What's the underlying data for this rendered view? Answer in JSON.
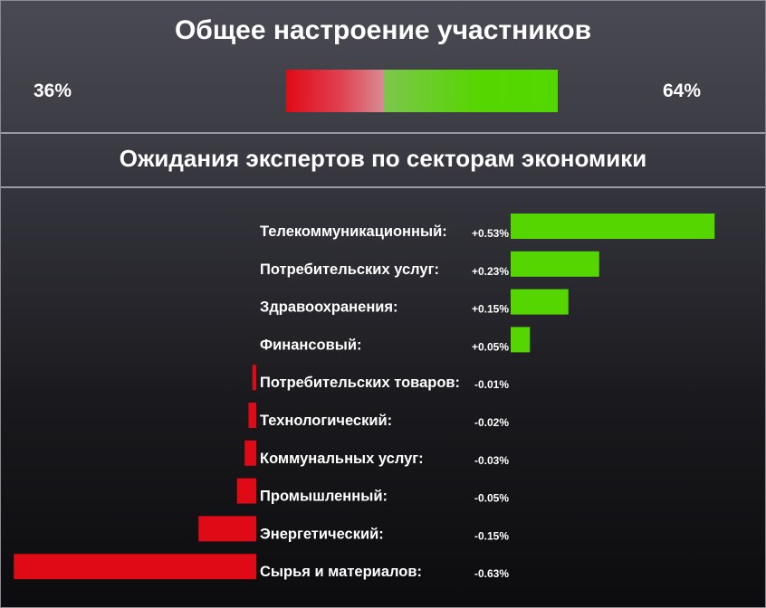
{
  "header": {
    "title": "Общее настроение участников",
    "negative_percent": "36%",
    "positive_percent": "64%"
  },
  "sentiment": {
    "negative": 36,
    "positive": 64
  },
  "section": {
    "title": "Ожидания экспертов по секторам экономики"
  },
  "colors": {
    "positive": "#55d600",
    "negative": "#e00a16"
  },
  "chart_data": {
    "type": "bar",
    "title": "Ожидания экспертов по секторам экономики",
    "categories": [
      "Телекоммуникационный:",
      "Потребительских услуг:",
      "Здравоохранения:",
      "Финансовый:",
      "Потребительских товаров:",
      "Технологический:",
      "Коммунальных услуг:",
      "Промышленный:",
      "Энергетический:",
      "Сырья и материалов:"
    ],
    "values": [
      0.53,
      0.23,
      0.15,
      0.05,
      -0.01,
      -0.02,
      -0.03,
      -0.05,
      -0.15,
      -0.63
    ],
    "value_labels": [
      "+0.53%",
      "+0.23%",
      "+0.15%",
      "+0.05%",
      "-0.01%",
      "-0.02%",
      "-0.03%",
      "-0.05%",
      "-0.15%",
      "-0.63%"
    ],
    "unit": "%"
  }
}
